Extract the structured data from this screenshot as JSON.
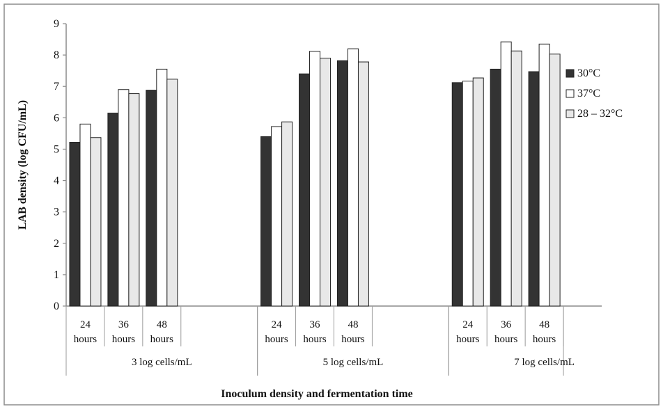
{
  "chart_data": {
    "type": "bar",
    "title": "",
    "xlabel": "Inoculum density and fermentation time",
    "ylabel": "LAB density (log CFU/mL)",
    "ylim": [
      0,
      9
    ],
    "yticks": [
      "0",
      "1",
      "2",
      "3",
      "4",
      "5",
      "6",
      "7",
      "8",
      "9"
    ],
    "grid": false,
    "legend_position": "right",
    "groups": [
      {
        "label": "3 log cells/mL",
        "categories": [
          "24 hours",
          "36 hours",
          "48 hours"
        ]
      },
      {
        "label": "5 log cells/mL",
        "categories": [
          "24 hours",
          "36 hours",
          "48 hours"
        ]
      },
      {
        "label": "7 log cells/mL",
        "categories": [
          "24 hours",
          "36 hours",
          "48 hours"
        ]
      }
    ],
    "category_lines": [
      {
        "line1": "24",
        "line2": "hours"
      },
      {
        "line1": "36",
        "line2": "hours"
      },
      {
        "line1": "48",
        "line2": "hours"
      }
    ],
    "series": [
      {
        "name": "30°C",
        "color": "#333333",
        "values": [
          5.22,
          6.15,
          6.88,
          5.4,
          7.4,
          7.82,
          7.12,
          7.55,
          7.47
        ]
      },
      {
        "name": "37°C",
        "color": "#ffffff",
        "values": [
          5.8,
          6.9,
          7.55,
          5.72,
          8.12,
          8.2,
          7.17,
          8.42,
          8.35
        ]
      },
      {
        "name": "28 – 32°C",
        "color": "#e8e8e8",
        "values": [
          5.37,
          6.77,
          7.23,
          5.87,
          7.9,
          7.78,
          7.27,
          8.13,
          8.03
        ]
      }
    ]
  }
}
